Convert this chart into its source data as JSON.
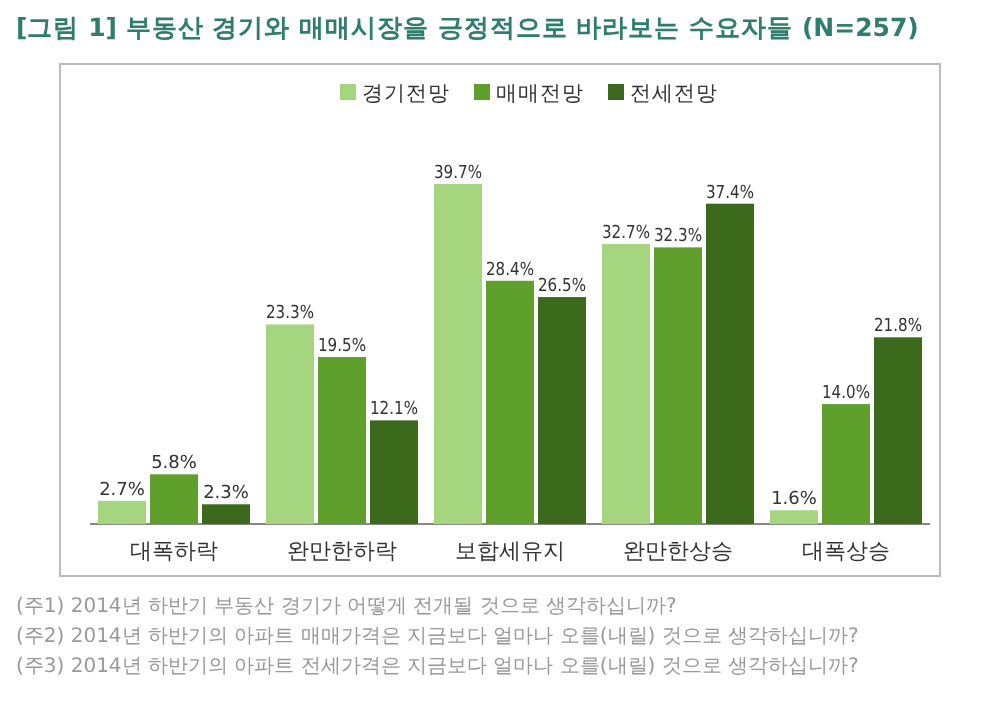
{
  "chart_data": {
    "type": "bar",
    "title": "[그림 1] 부동산 경기와 매매시장을 긍정적으로 바라보는 수요자들 (N=257)",
    "categories": [
      "대폭하락",
      "완만한하락",
      "보합세유지",
      "완만한상승",
      "대폭상승"
    ],
    "series": [
      {
        "name": "경기전망",
        "color": "#a5d67f",
        "values": [
          2.7,
          23.3,
          39.7,
          32.7,
          1.6
        ],
        "value_labels": [
          "2.7%",
          "23.3%",
          "39.7%",
          "32.7%",
          "1.6%"
        ]
      },
      {
        "name": "매매전망",
        "color": "#5f9f2c",
        "values": [
          5.8,
          19.5,
          28.4,
          32.3,
          14.0
        ],
        "value_labels": [
          "5.8%",
          "19.5%",
          "28.4%",
          "32.3%",
          "14.0%"
        ]
      },
      {
        "name": "전세전망",
        "color": "#3b6a1c",
        "values": [
          2.3,
          12.1,
          26.5,
          37.4,
          21.8
        ],
        "value_labels": [
          "2.3%",
          "12.1%",
          "26.5%",
          "37.4%",
          "21.8%"
        ]
      }
    ],
    "legend": "top",
    "grid": false,
    "annotations": [
      "(주1) 2014년 하반기 부동산 경기가 어떻게 전개될 것으로 생각하십니까?",
      "(주2) 2014년 하반기의 아파트 매매가격은 지금보다 얼마나 오를(내릴) 것으로 생각하십니까?",
      "(주3) 2014년 하반기의 아파트 전세가격은 지금보다 얼마나 오를(내릴) 것으로 생각하십니까?"
    ]
  }
}
